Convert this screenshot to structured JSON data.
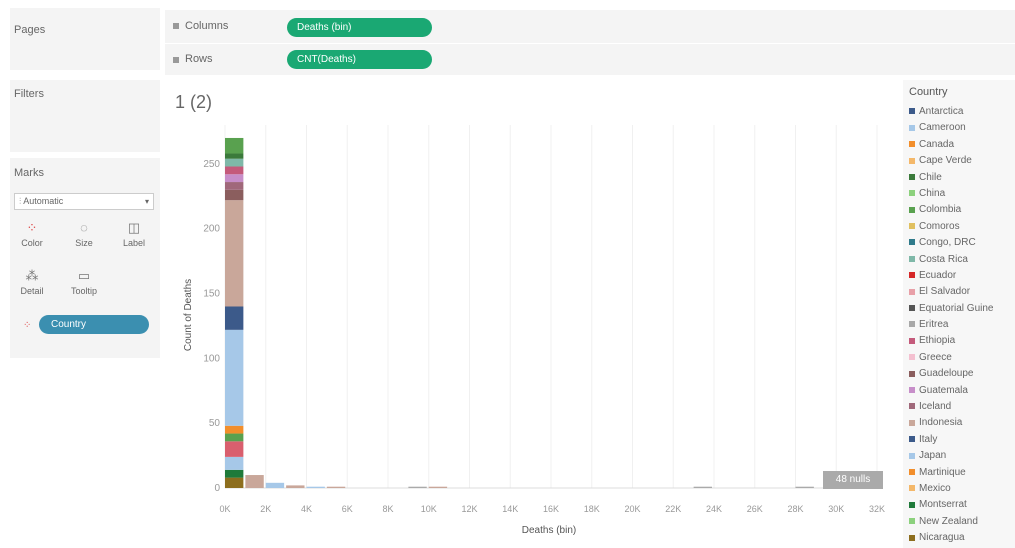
{
  "pages": {
    "label": "Pages"
  },
  "filters": {
    "label": "Filters"
  },
  "columns": {
    "label": "Columns",
    "pill": "Deaths (bin)"
  },
  "rows": {
    "label": "Rows",
    "pill": "CNT(Deaths)"
  },
  "marks": {
    "label": "Marks",
    "type": "Automatic",
    "buttons": [
      "Color",
      "Size",
      "Label",
      "Detail",
      "Tooltip"
    ],
    "color_pill": "Country"
  },
  "chart_data": {
    "type": "bar",
    "stacked": true,
    "title": "1 (2)",
    "xlabel": "Deaths (bin)",
    "ylabel": "Count of Deaths",
    "x_ticks": [
      "0K",
      "2K",
      "4K",
      "6K",
      "8K",
      "10K",
      "12K",
      "14K",
      "16K",
      "18K",
      "20K",
      "22K",
      "24K",
      "26K",
      "28K",
      "30K",
      "32K"
    ],
    "y_ticks": [
      0,
      50,
      100,
      150,
      200,
      250
    ],
    "ylim": [
      0,
      280
    ],
    "xlim": [
      0,
      32000
    ],
    "bins": [
      {
        "x": 0,
        "value": 270
      },
      {
        "x": 1000,
        "value": 10
      },
      {
        "x": 2000,
        "value": 4
      },
      {
        "x": 3000,
        "value": 2
      },
      {
        "x": 4000,
        "value": 1
      },
      {
        "x": 5000,
        "value": 1
      },
      {
        "x": 9000,
        "value": 1
      },
      {
        "x": 10000,
        "value": 1
      },
      {
        "x": 23000,
        "value": 1
      },
      {
        "x": 28000,
        "value": 1
      }
    ],
    "stack_0": [
      {
        "country": "Nicaragua",
        "value": 8,
        "color": "#8d6e1e"
      },
      {
        "country": "Montserrat",
        "value": 6,
        "color": "#1f7a3a"
      },
      {
        "country": "Cameroon",
        "value": 10,
        "color": "#a6c8e8"
      },
      {
        "country": "Ecuador",
        "value": 12,
        "color": "#d95f6e"
      },
      {
        "country": "Colombia",
        "value": 6,
        "color": "#59a14f"
      },
      {
        "country": "Canada",
        "value": 6,
        "color": "#f28e2b"
      },
      {
        "country": "Cameroon",
        "value": 74,
        "color": "#a6c8e8"
      },
      {
        "country": "Italy",
        "value": 18,
        "color": "#3c5a8a"
      },
      {
        "country": "Indonesia",
        "value": 82,
        "color": "#c9a79a"
      },
      {
        "country": "Guadeloupe",
        "value": 8,
        "color": "#8b5e5e"
      },
      {
        "country": "Iceland",
        "value": 6,
        "color": "#a0687a"
      },
      {
        "country": "Guatemala",
        "value": 6,
        "color": "#c78ec9"
      },
      {
        "country": "Ethiopia",
        "value": 6,
        "color": "#c45a7b"
      },
      {
        "country": "Costa Rica",
        "value": 6,
        "color": "#7fb8a8"
      },
      {
        "country": "Chile",
        "value": 4,
        "color": "#3b7a3b"
      },
      {
        "country": "Colombia",
        "value": 12,
        "color": "#59a14f"
      }
    ],
    "null_badge": "48 nulls"
  },
  "legend": {
    "title": "Country",
    "items": [
      {
        "label": "Antarctica",
        "color": "#3c5a8a"
      },
      {
        "label": "Cameroon",
        "color": "#a6c8e8"
      },
      {
        "label": "Canada",
        "color": "#f28e2b"
      },
      {
        "label": "Cape Verde",
        "color": "#f4b86a"
      },
      {
        "label": "Chile",
        "color": "#3b7a3b"
      },
      {
        "label": "China",
        "color": "#8cd17d"
      },
      {
        "label": "Colombia",
        "color": "#59a14f"
      },
      {
        "label": "Comoros",
        "color": "#e0c060"
      },
      {
        "label": "Congo, DRC",
        "color": "#2f7a8a"
      },
      {
        "label": "Costa Rica",
        "color": "#7fb8a8"
      },
      {
        "label": "Ecuador",
        "color": "#d62728"
      },
      {
        "label": "El Salvador",
        "color": "#e8a0a8"
      },
      {
        "label": "Equatorial Guine",
        "color": "#555555"
      },
      {
        "label": "Eritrea",
        "color": "#a8a8a8"
      },
      {
        "label": "Ethiopia",
        "color": "#c45a7b"
      },
      {
        "label": "Greece",
        "color": "#f4c0d0"
      },
      {
        "label": "Guadeloupe",
        "color": "#8b5e5e"
      },
      {
        "label": "Guatemala",
        "color": "#c78ec9"
      },
      {
        "label": "Iceland",
        "color": "#a0687a"
      },
      {
        "label": "Indonesia",
        "color": "#c9a79a"
      },
      {
        "label": "Italy",
        "color": "#3c5a8a"
      },
      {
        "label": "Japan",
        "color": "#a6c8e8"
      },
      {
        "label": "Martinique",
        "color": "#f28e2b"
      },
      {
        "label": "Mexico",
        "color": "#f4b86a"
      },
      {
        "label": "Montserrat",
        "color": "#1f7a3a"
      },
      {
        "label": "New Zealand",
        "color": "#8cd17d"
      },
      {
        "label": "Nicaragua",
        "color": "#8d6e1e"
      }
    ]
  }
}
